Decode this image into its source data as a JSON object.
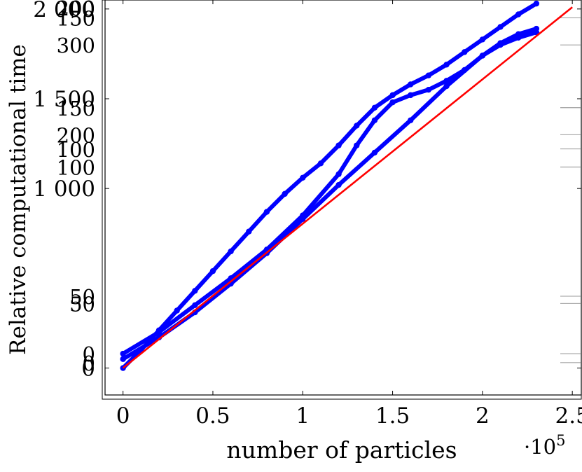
{
  "chart_data": [
    {
      "type": "scatter",
      "xlabel": "number of particles",
      "ylabel": "Relative computational time",
      "x_multiplier_label": "·10",
      "x_multiplier_exponent": "5",
      "xlim": [
        -0.1,
        2.55
      ],
      "ylim": [
        -0.15,
        2.05
      ],
      "x_ticks": [
        0,
        0.5,
        1,
        1.5,
        2,
        2.5
      ],
      "x_tick_labels": [
        "0",
        "0.5",
        "1",
        "1.5",
        "2",
        "2.5"
      ],
      "y_ticks": [
        0,
        1000,
        1500,
        2000
      ],
      "y_tick_labels": [
        "0",
        "1 000",
        "1 500",
        "2 000"
      ],
      "extra_tick_labels": [
        "200",
        "150",
        "300",
        "150",
        "200",
        "100",
        "100",
        "50",
        "50",
        "0",
        "0"
      ],
      "grid": false,
      "series": [
        {
          "color": "#0000ff",
          "marker": "circle",
          "x": [
            0.0,
            0.1,
            0.2,
            0.3,
            0.4,
            0.5,
            0.6,
            0.7,
            0.8,
            0.9,
            1.0,
            1.1,
            1.2,
            1.3,
            1.4,
            1.5,
            1.6,
            1.7,
            1.8,
            1.9,
            2.0,
            2.1,
            2.2,
            2.3
          ],
          "y": [
            0.0,
            0.1,
            0.21,
            0.32,
            0.43,
            0.54,
            0.65,
            0.76,
            0.87,
            0.97,
            1.06,
            1.14,
            1.24,
            1.35,
            1.45,
            1.52,
            1.58,
            1.63,
            1.69,
            1.76,
            1.83,
            1.9,
            1.97,
            2.03
          ]
        },
        {
          "color": "#0000ff",
          "marker": "circle",
          "x": [
            0.0,
            0.2,
            0.4,
            0.6,
            0.8,
            1.0,
            1.2,
            1.3,
            1.4,
            1.5,
            1.6,
            1.7,
            1.8,
            1.9,
            2.0,
            2.1,
            2.2,
            2.3
          ],
          "y": [
            0.08,
            0.2,
            0.35,
            0.5,
            0.66,
            0.85,
            1.08,
            1.24,
            1.38,
            1.48,
            1.52,
            1.55,
            1.6,
            1.66,
            1.74,
            1.81,
            1.86,
            1.89
          ]
        },
        {
          "color": "#0000ff",
          "marker": "circle",
          "x": [
            0.0,
            0.2,
            0.4,
            0.6,
            0.8,
            1.0,
            1.2,
            1.4,
            1.6,
            1.8,
            2.0,
            2.1,
            2.2,
            2.3
          ],
          "y": [
            0.05,
            0.17,
            0.31,
            0.47,
            0.64,
            0.83,
            1.02,
            1.2,
            1.38,
            1.57,
            1.74,
            1.8,
            1.84,
            1.87
          ]
        },
        {
          "color": "#ff0000",
          "marker": "none",
          "x": [
            0.0,
            2.5
          ],
          "y": [
            0.0,
            2.01
          ]
        }
      ]
    }
  ]
}
